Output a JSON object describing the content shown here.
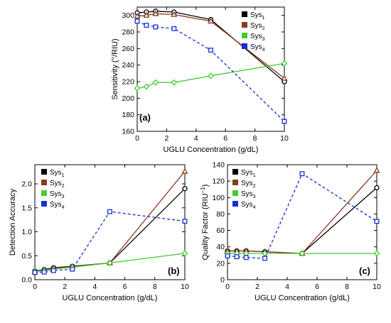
{
  "chart_data": [
    {
      "type": "line",
      "panel_label": "(a)",
      "xlabel": "UGLU Concentration (g/dL)",
      "ylabel": "Sensitivity (°/RIU)",
      "xlim": [
        0,
        10
      ],
      "ylim": [
        160,
        310
      ],
      "xticks": [
        0,
        2,
        4,
        6,
        8,
        10
      ],
      "yticks": [
        160,
        180,
        200,
        220,
        240,
        260,
        280,
        300
      ],
      "x": [
        0,
        0.625,
        1.25,
        2.5,
        5,
        10
      ],
      "legend_position": "top-right",
      "series": [
        {
          "name": "Sys",
          "subscript": "1",
          "color": "#000000",
          "marker": "circle",
          "dashed": false,
          "values": [
            303,
            304,
            305,
            304,
            295,
            220
          ]
        },
        {
          "name": "Sys",
          "subscript": "2",
          "color": "#8b3a1f",
          "marker": "triangle",
          "dashed": false,
          "values": [
            299,
            300,
            302,
            301,
            293,
            224
          ]
        },
        {
          "name": "Sys",
          "subscript": "3",
          "color": "#44cc33",
          "marker": "diamond",
          "dashed": false,
          "values": [
            212,
            214,
            219,
            219,
            227,
            242
          ]
        },
        {
          "name": "Sys",
          "subscript": "4",
          "color": "#1a2fd0",
          "marker": "square",
          "dashed": true,
          "values": [
            293,
            288,
            286,
            284,
            258,
            172
          ]
        }
      ]
    },
    {
      "type": "line",
      "panel_label": "(b)",
      "xlabel": "UGLU Concentration (g/dL)",
      "ylabel": "Detection Accuracy",
      "xlim": [
        0,
        10
      ],
      "ylim": [
        0,
        2.4
      ],
      "xticks": [
        0,
        2,
        4,
        6,
        8,
        10
      ],
      "yticks": [
        0.0,
        0.5,
        1.0,
        1.5,
        2.0
      ],
      "ytick_labels": [
        "0.0",
        "0.5",
        "1.0",
        "1.5",
        "2.0"
      ],
      "x": [
        0,
        0.625,
        1.25,
        2.5,
        5,
        10
      ],
      "legend_position": "top-left",
      "series": [
        {
          "name": "Sys",
          "subscript": "1",
          "color": "#000000",
          "marker": "circle",
          "dashed": false,
          "values": [
            0.18,
            0.21,
            0.25,
            0.28,
            0.35,
            1.9
          ]
        },
        {
          "name": "Sys",
          "subscript": "2",
          "color": "#8b3a1f",
          "marker": "triangle",
          "dashed": false,
          "values": [
            0.17,
            0.2,
            0.24,
            0.27,
            0.35,
            2.26
          ]
        },
        {
          "name": "Sys",
          "subscript": "3",
          "color": "#44cc33",
          "marker": "diamond",
          "dashed": false,
          "values": [
            0.17,
            0.19,
            0.22,
            0.26,
            0.35,
            0.55
          ]
        },
        {
          "name": "Sys",
          "subscript": "4",
          "color": "#1a2fd0",
          "marker": "square",
          "dashed": true,
          "values": [
            0.15,
            0.16,
            0.19,
            0.22,
            1.42,
            1.22
          ]
        }
      ]
    },
    {
      "type": "line",
      "panel_label": "(c)",
      "xlabel": "UGLU Concentration (g/dL)",
      "ylabel": "Quality Factor (RIU",
      "ylabel_sup": "−1",
      "ylabel_end": ")",
      "xlim": [
        0,
        10
      ],
      "ylim": [
        0,
        140
      ],
      "xticks": [
        0,
        2,
        4,
        6,
        8,
        10
      ],
      "yticks": [
        0,
        20,
        40,
        60,
        80,
        100,
        120,
        140
      ],
      "x": [
        0,
        0.625,
        1.25,
        2.5,
        5,
        10
      ],
      "legend_position": "top-left",
      "series": [
        {
          "name": "Sys",
          "subscript": "1",
          "color": "#000000",
          "marker": "circle",
          "dashed": false,
          "values": [
            35,
            35,
            35,
            34,
            32,
            112
          ]
        },
        {
          "name": "Sys",
          "subscript": "2",
          "color": "#8b3a1f",
          "marker": "triangle",
          "dashed": false,
          "values": [
            35,
            35,
            35,
            34,
            32,
            133
          ]
        },
        {
          "name": "Sys",
          "subscript": "3",
          "color": "#44cc33",
          "marker": "diamond",
          "dashed": false,
          "values": [
            32,
            32,
            32,
            32,
            32,
            32
          ]
        },
        {
          "name": "Sys",
          "subscript": "4",
          "color": "#1a2fd0",
          "marker": "square",
          "dashed": true,
          "values": [
            29,
            28,
            27,
            26,
            129,
            71
          ]
        }
      ]
    }
  ]
}
